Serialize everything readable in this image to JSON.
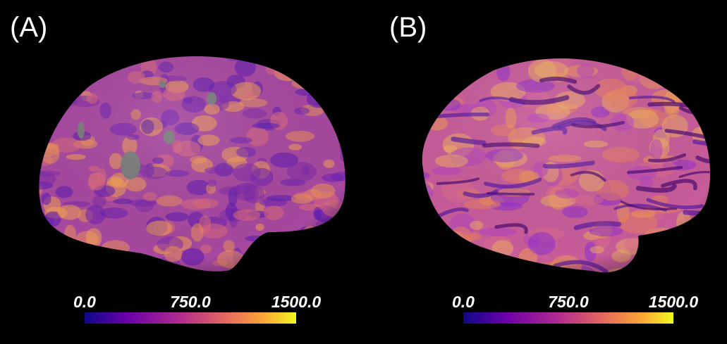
{
  "panels": [
    {
      "label": "(A)",
      "colorbar": {
        "lim": [
          0,
          1500
        ],
        "ticks": [
          {
            "value": 0,
            "label": "0.0"
          },
          {
            "value": 750,
            "label": "750.0"
          },
          {
            "value": 1500,
            "label": "1500.0"
          }
        ]
      }
    },
    {
      "label": "(B)",
      "colorbar": {
        "lim": [
          0,
          1500
        ],
        "ticks": [
          {
            "value": 0,
            "label": "0.0"
          },
          {
            "value": 750,
            "label": "750.0"
          },
          {
            "value": 1500,
            "label": "1500.0"
          }
        ]
      }
    }
  ]
}
